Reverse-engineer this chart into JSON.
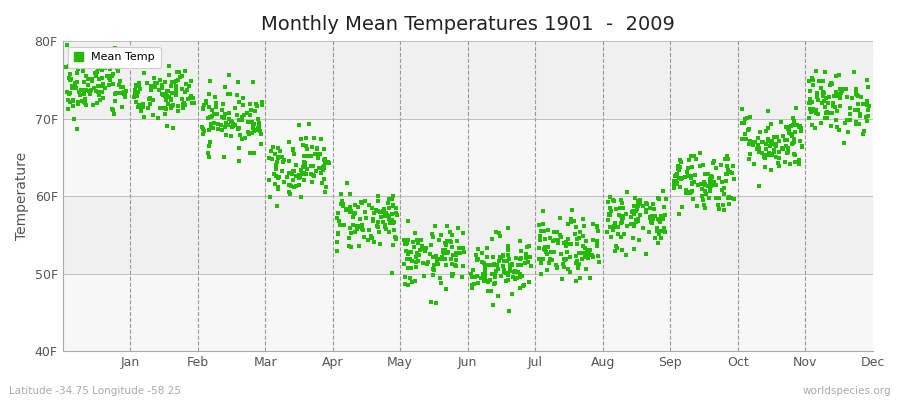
{
  "title": "Monthly Mean Temperatures 1901  -  2009",
  "ylabel": "Temperature",
  "xlabel": "",
  "bg_color": "#f0f0f0",
  "fig_bg_color": "#ffffff",
  "marker_color": "#22bb00",
  "marker_size": 5,
  "legend_label": "Mean Temp",
  "yticks": [
    40,
    50,
    60,
    70,
    80
  ],
  "ytick_labels": [
    "40F",
    "50F",
    "60F",
    "70F",
    "80F"
  ],
  "ylim": [
    40,
    80
  ],
  "months": [
    "Jan",
    "Feb",
    "Mar",
    "Apr",
    "May",
    "Jun",
    "Jul",
    "Aug",
    "Sep",
    "Oct",
    "Nov",
    "Dec"
  ],
  "subtitle_left": "Latitude -34.75 Longitude -58.25",
  "subtitle_right": "worldspecies.org",
  "monthly_means": [
    74,
    73,
    70,
    64,
    57,
    52,
    51,
    53,
    57,
    62,
    67,
    72
  ],
  "monthly_stds": [
    2.0,
    2.0,
    2.0,
    2.0,
    2.0,
    2.0,
    2.0,
    2.0,
    2.0,
    2.0,
    2.0,
    2.0
  ],
  "n_years": 109
}
